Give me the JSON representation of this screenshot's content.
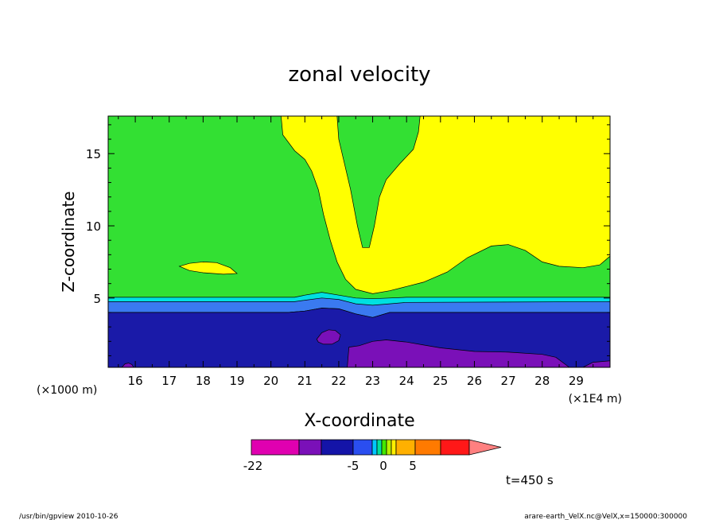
{
  "chart_data": {
    "type": "heatmap",
    "title": "zonal velocity",
    "xlabel": "X-coordinate",
    "ylabel": "Z-coordinate",
    "x_scale_note": "(×1E4 m)",
    "y_scale_note": "(×1000 m)",
    "xlim": [
      15.2,
      30.0
    ],
    "ylim": [
      0.2,
      17.6
    ],
    "x_ticks": [
      16,
      17,
      18,
      19,
      20,
      21,
      22,
      23,
      24,
      25,
      26,
      27,
      28,
      29
    ],
    "y_ticks": [
      5,
      10,
      15
    ],
    "grid": false,
    "colorbar": {
      "tick_labels": [
        "-22",
        "-5",
        "0",
        "5"
      ],
      "bin_colors": [
        "#e000b0",
        "#7a10b8",
        "#1414a8",
        "#2a4ef0",
        "#00c8ff",
        "#00e0a0",
        "#44e800",
        "#b8f000",
        "#fff000",
        "#ffb000",
        "#ff7a00",
        "#ff1818",
        "#ff8080"
      ]
    },
    "regions": [
      {
        "name": "background",
        "color": "#33e033",
        "points": [
          [
            15.2,
            0.2
          ],
          [
            30.0,
            0.2
          ],
          [
            30.0,
            17.6
          ],
          [
            15.2,
            17.6
          ]
        ]
      },
      {
        "name": "yellow-upper",
        "color": "#ffff00",
        "points": [
          [
            20.3,
            17.6
          ],
          [
            20.35,
            16.3
          ],
          [
            20.7,
            15.2
          ],
          [
            21.0,
            14.6
          ],
          [
            21.2,
            13.8
          ],
          [
            21.4,
            12.5
          ],
          [
            21.55,
            10.8
          ],
          [
            21.75,
            9.0
          ],
          [
            21.95,
            7.5
          ],
          [
            22.2,
            6.3
          ],
          [
            22.5,
            5.6
          ],
          [
            23.0,
            5.3
          ],
          [
            23.5,
            5.5
          ],
          [
            24.0,
            5.8
          ],
          [
            24.5,
            6.1
          ],
          [
            25.2,
            6.8
          ],
          [
            25.8,
            7.8
          ],
          [
            26.5,
            8.6
          ],
          [
            27.0,
            8.7
          ],
          [
            27.5,
            8.3
          ],
          [
            28.0,
            7.5
          ],
          [
            28.5,
            7.2
          ],
          [
            29.2,
            7.1
          ],
          [
            29.7,
            7.3
          ],
          [
            30.0,
            7.9
          ],
          [
            30.0,
            17.6
          ],
          [
            24.4,
            17.6
          ],
          [
            24.35,
            16.5
          ],
          [
            24.2,
            15.3
          ],
          [
            23.8,
            14.3
          ],
          [
            23.4,
            13.2
          ],
          [
            23.2,
            12.0
          ],
          [
            23.05,
            10.0
          ],
          [
            22.9,
            8.5
          ],
          [
            22.7,
            8.5
          ],
          [
            22.55,
            10.0
          ],
          [
            22.35,
            12.5
          ],
          [
            22.15,
            14.5
          ],
          [
            22.0,
            16.0
          ],
          [
            21.95,
            17.6
          ]
        ]
      },
      {
        "name": "yellow-patch",
        "color": "#ffff00",
        "points": [
          [
            17.3,
            7.2
          ],
          [
            17.6,
            7.4
          ],
          [
            18.0,
            7.5
          ],
          [
            18.4,
            7.45
          ],
          [
            18.8,
            7.1
          ],
          [
            19.0,
            6.7
          ],
          [
            18.6,
            6.65
          ],
          [
            18.0,
            6.75
          ],
          [
            17.6,
            6.9
          ]
        ]
      },
      {
        "name": "cyan-band",
        "color": "#00e0e0",
        "points": [
          [
            15.2,
            5.05
          ],
          [
            20.7,
            5.05
          ],
          [
            21.0,
            5.2
          ],
          [
            21.5,
            5.4
          ],
          [
            22.0,
            5.2
          ],
          [
            22.5,
            5.0
          ],
          [
            23.0,
            4.95
          ],
          [
            23.5,
            5.0
          ],
          [
            24.0,
            5.05
          ],
          [
            30.0,
            5.05
          ],
          [
            30.0,
            4.35
          ],
          [
            23.5,
            4.35
          ],
          [
            23.0,
            4.2
          ],
          [
            22.5,
            4.3
          ],
          [
            22.0,
            4.6
          ],
          [
            21.5,
            4.6
          ],
          [
            21.0,
            4.4
          ],
          [
            20.5,
            4.35
          ],
          [
            15.2,
            4.35
          ]
        ]
      },
      {
        "name": "blue-band",
        "color": "#3a7af0",
        "points": [
          [
            15.2,
            4.75
          ],
          [
            20.7,
            4.75
          ],
          [
            21.0,
            4.85
          ],
          [
            21.5,
            5.0
          ],
          [
            22.0,
            4.9
          ],
          [
            22.5,
            4.6
          ],
          [
            23.0,
            4.5
          ],
          [
            23.5,
            4.6
          ],
          [
            24.0,
            4.7
          ],
          [
            30.0,
            4.75
          ],
          [
            30.0,
            4.0
          ],
          [
            23.5,
            4.0
          ],
          [
            23.0,
            3.65
          ],
          [
            22.5,
            3.9
          ],
          [
            22.0,
            4.25
          ],
          [
            21.5,
            4.3
          ],
          [
            21.0,
            4.1
          ],
          [
            20.5,
            4.0
          ],
          [
            15.2,
            4.0
          ]
        ]
      },
      {
        "name": "navy-lower",
        "color": "#1a1aa8",
        "points": [
          [
            15.2,
            4.0
          ],
          [
            20.5,
            4.0
          ],
          [
            21.0,
            4.1
          ],
          [
            21.5,
            4.3
          ],
          [
            22.0,
            4.25
          ],
          [
            22.5,
            3.9
          ],
          [
            23.0,
            3.65
          ],
          [
            23.5,
            4.0
          ],
          [
            30.0,
            4.0
          ],
          [
            30.0,
            0.2
          ],
          [
            15.2,
            0.2
          ]
        ]
      },
      {
        "name": "purple-bottom",
        "color": "#7a10b8",
        "points": [
          [
            22.25,
            0.2
          ],
          [
            22.3,
            1.6
          ],
          [
            22.6,
            1.7
          ],
          [
            23.0,
            2.0
          ],
          [
            23.4,
            2.1
          ],
          [
            24.0,
            1.95
          ],
          [
            24.5,
            1.75
          ],
          [
            25.0,
            1.55
          ],
          [
            26.0,
            1.3
          ],
          [
            27.0,
            1.25
          ],
          [
            28.0,
            1.1
          ],
          [
            28.4,
            0.9
          ],
          [
            28.8,
            0.2
          ]
        ]
      },
      {
        "name": "purple-corner",
        "color": "#7a10b8",
        "points": [
          [
            29.2,
            0.2
          ],
          [
            29.5,
            0.55
          ],
          [
            30.0,
            0.65
          ],
          [
            30.0,
            0.2
          ]
        ]
      },
      {
        "name": "purple-blob",
        "color": "#7a10b8",
        "points": [
          [
            21.35,
            2.15
          ],
          [
            21.5,
            2.6
          ],
          [
            21.7,
            2.8
          ],
          [
            21.9,
            2.75
          ],
          [
            22.05,
            2.45
          ],
          [
            22.0,
            2.05
          ],
          [
            21.8,
            1.8
          ],
          [
            21.55,
            1.8
          ],
          [
            21.4,
            1.95
          ]
        ]
      },
      {
        "name": "purple-speck",
        "color": "#7a10b8",
        "points": [
          [
            15.6,
            0.2
          ],
          [
            15.7,
            0.45
          ],
          [
            15.8,
            0.5
          ],
          [
            15.9,
            0.4
          ],
          [
            15.95,
            0.2
          ]
        ]
      }
    ],
    "annotations": [
      "t=450 s"
    ]
  },
  "footer": {
    "left": "/usr/bin/gpview   2010-10-26",
    "right": "arare-earth_VelX.nc@VelX,x=150000:300000"
  }
}
